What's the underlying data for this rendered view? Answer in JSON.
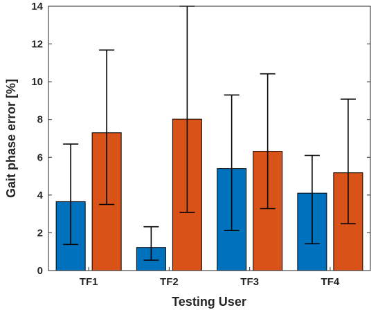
{
  "chart_data": {
    "type": "bar",
    "title": "",
    "xlabel": "Testing User",
    "ylabel": "Gait phase error [%]",
    "categories": [
      "TF1",
      "TF2",
      "TF3",
      "TF4"
    ],
    "ylim": [
      0,
      14
    ],
    "yticks": [
      0,
      2,
      4,
      6,
      8,
      10,
      12,
      14
    ],
    "grid": false,
    "legend": "none",
    "series": [
      {
        "color": "#0072BD",
        "values": [
          3.65,
          1.22,
          5.4,
          4.1
        ],
        "error_low": [
          1.38,
          0.55,
          2.12,
          1.42
        ],
        "error_high": [
          6.7,
          2.32,
          9.3,
          6.1
        ]
      },
      {
        "color": "#D95319",
        "values": [
          7.3,
          8.02,
          6.32,
          5.18
        ],
        "error_low": [
          3.5,
          3.08,
          3.28,
          2.48
        ],
        "error_high": [
          11.68,
          14.0,
          10.42,
          9.08
        ]
      }
    ]
  }
}
